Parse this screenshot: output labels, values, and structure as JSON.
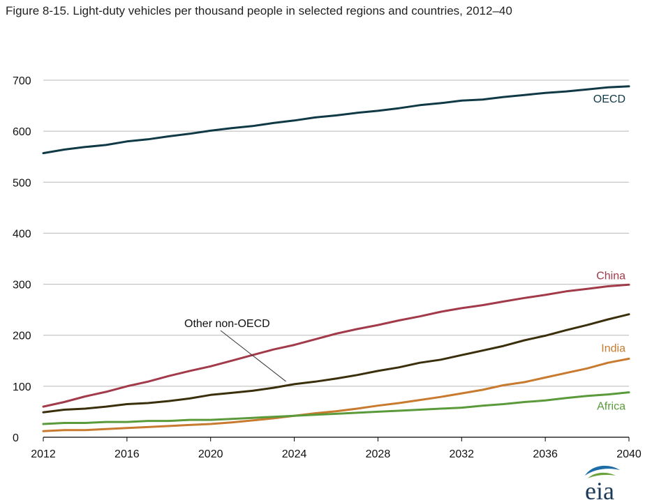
{
  "figure_title": "Figure 8-15. Light-duty vehicles per thousand people in selected regions and countries, 2012–40",
  "logo_text": "eia",
  "colors": {
    "OECD": "#0f3a45",
    "China": "#a23a4a",
    "Other non-OECD": "#3b2f0b",
    "India": "#c87a2e",
    "Africa": "#5a9a3a",
    "grid": "#b8b8b8",
    "axis": "#000000"
  },
  "chart_data": {
    "type": "line",
    "title": "Figure 8-15. Light-duty vehicles per thousand people in selected regions and countries, 2012–40",
    "xlabel": "",
    "ylabel": "",
    "xlim": [
      2012,
      2040
    ],
    "ylim": [
      0,
      700
    ],
    "x_ticks": [
      2012,
      2016,
      2020,
      2024,
      2028,
      2032,
      2036,
      2040
    ],
    "y_ticks": [
      0,
      100,
      200,
      300,
      400,
      500,
      600,
      700
    ],
    "grid": true,
    "x": [
      2012,
      2013,
      2014,
      2015,
      2016,
      2017,
      2018,
      2019,
      2020,
      2021,
      2022,
      2023,
      2024,
      2025,
      2026,
      2027,
      2028,
      2029,
      2030,
      2031,
      2032,
      2033,
      2034,
      2035,
      2036,
      2037,
      2038,
      2039,
      2040
    ],
    "series": [
      {
        "name": "OECD",
        "values": [
          557,
          564,
          569,
          573,
          580,
          584,
          590,
          595,
          601,
          606,
          610,
          616,
          621,
          627,
          631,
          636,
          640,
          645,
          651,
          655,
          660,
          662,
          667,
          671,
          675,
          678,
          682,
          686,
          688
        ]
      },
      {
        "name": "China",
        "values": [
          60,
          69,
          80,
          89,
          100,
          109,
          120,
          130,
          139,
          150,
          161,
          172,
          181,
          192,
          203,
          212,
          220,
          229,
          237,
          246,
          253,
          259,
          266,
          273,
          279,
          286,
          291,
          296,
          299
        ]
      },
      {
        "name": "Other non-OECD",
        "values": [
          49,
          54,
          56,
          60,
          65,
          67,
          71,
          76,
          83,
          87,
          91,
          97,
          104,
          109,
          115,
          122,
          130,
          137,
          146,
          152,
          161,
          170,
          179,
          190,
          199,
          210,
          220,
          231,
          241
        ]
      },
      {
        "name": "India",
        "values": [
          12,
          14,
          14,
          16,
          18,
          20,
          22,
          24,
          26,
          29,
          33,
          37,
          42,
          47,
          51,
          56,
          62,
          67,
          73,
          79,
          86,
          93,
          102,
          108,
          117,
          126,
          135,
          146,
          154
        ]
      },
      {
        "name": "Africa",
        "values": [
          26,
          28,
          28,
          30,
          30,
          32,
          32,
          34,
          34,
          36,
          38,
          40,
          42,
          44,
          46,
          48,
          50,
          52,
          54,
          56,
          58,
          62,
          65,
          69,
          72,
          77,
          81,
          84,
          88
        ]
      }
    ],
    "labels": [
      {
        "series": "OECD",
        "text": "OECD"
      },
      {
        "series": "China",
        "text": "China"
      },
      {
        "series": "India",
        "text": "India"
      },
      {
        "series": "Africa",
        "text": "Africa"
      }
    ],
    "annotations": [
      {
        "text": "Other non-OECD",
        "points_to": "Other non-OECD",
        "at_x": 2024
      }
    ]
  }
}
